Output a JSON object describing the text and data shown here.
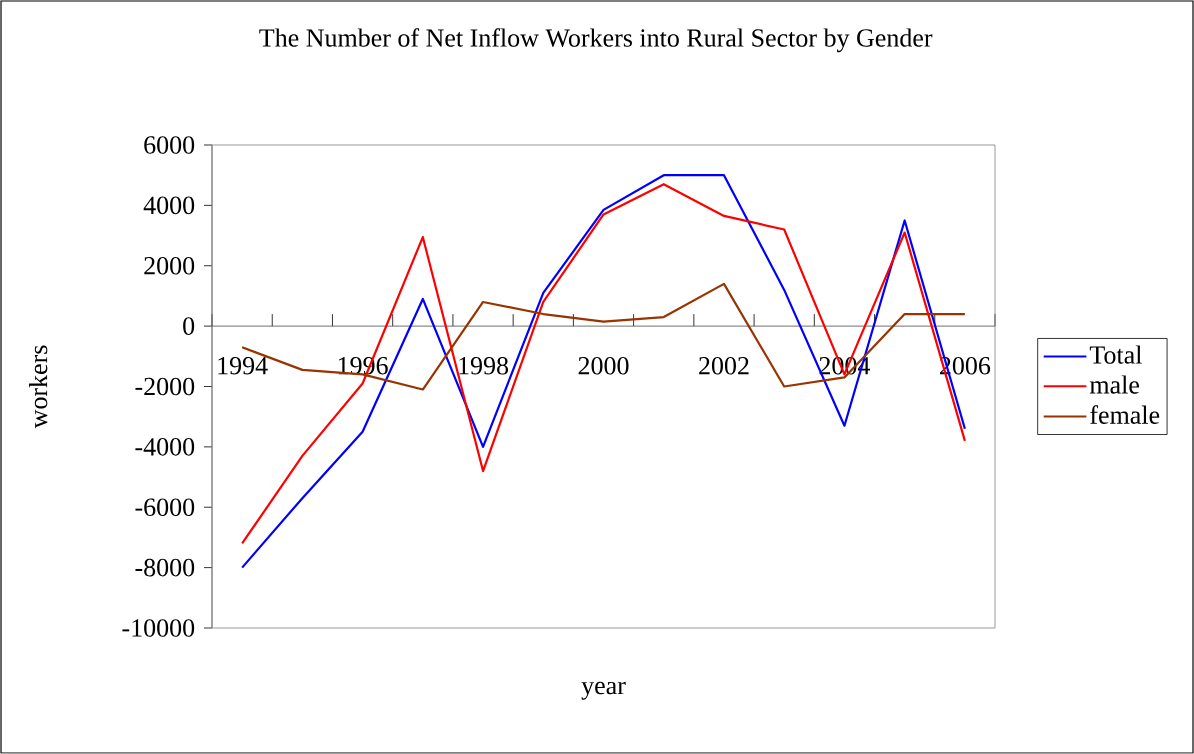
{
  "chart_data": {
    "type": "line",
    "title": "The Number of Net Inflow Workers into Rural Sector by Gender",
    "xlabel": "year",
    "ylabel": "workers",
    "categories": [
      "1994",
      null,
      "1996",
      null,
      "1998",
      null,
      "2000",
      null,
      "2002",
      null,
      "2004",
      null,
      "2006"
    ],
    "series": [
      {
        "name": "Total",
        "color": "#0000ff",
        "values": [
          -8000,
          -5700,
          -3500,
          900,
          -4000,
          1100,
          3850,
          5000,
          5000,
          1200,
          -3300,
          3500,
          -3400
        ]
      },
      {
        "name": "male",
        "color": "#ff0000",
        "values": [
          -7200,
          -4300,
          -1900,
          2950,
          -4800,
          800,
          3700,
          4700,
          3650,
          3200,
          -1600,
          3100,
          -3800
        ]
      },
      {
        "name": "female",
        "color": "#993300",
        "values": [
          -700,
          -1450,
          -1600,
          -2100,
          800,
          400,
          150,
          300,
          1400,
          -2000,
          -1700,
          400,
          400
        ]
      }
    ],
    "ylim": [
      -10000,
      6000
    ],
    "yticks": [
      -10000,
      -8000,
      -6000,
      -4000,
      -2000,
      0,
      2000,
      4000,
      6000
    ],
    "grid": false,
    "legend": "right",
    "marker": "none",
    "line_style": "solid"
  }
}
